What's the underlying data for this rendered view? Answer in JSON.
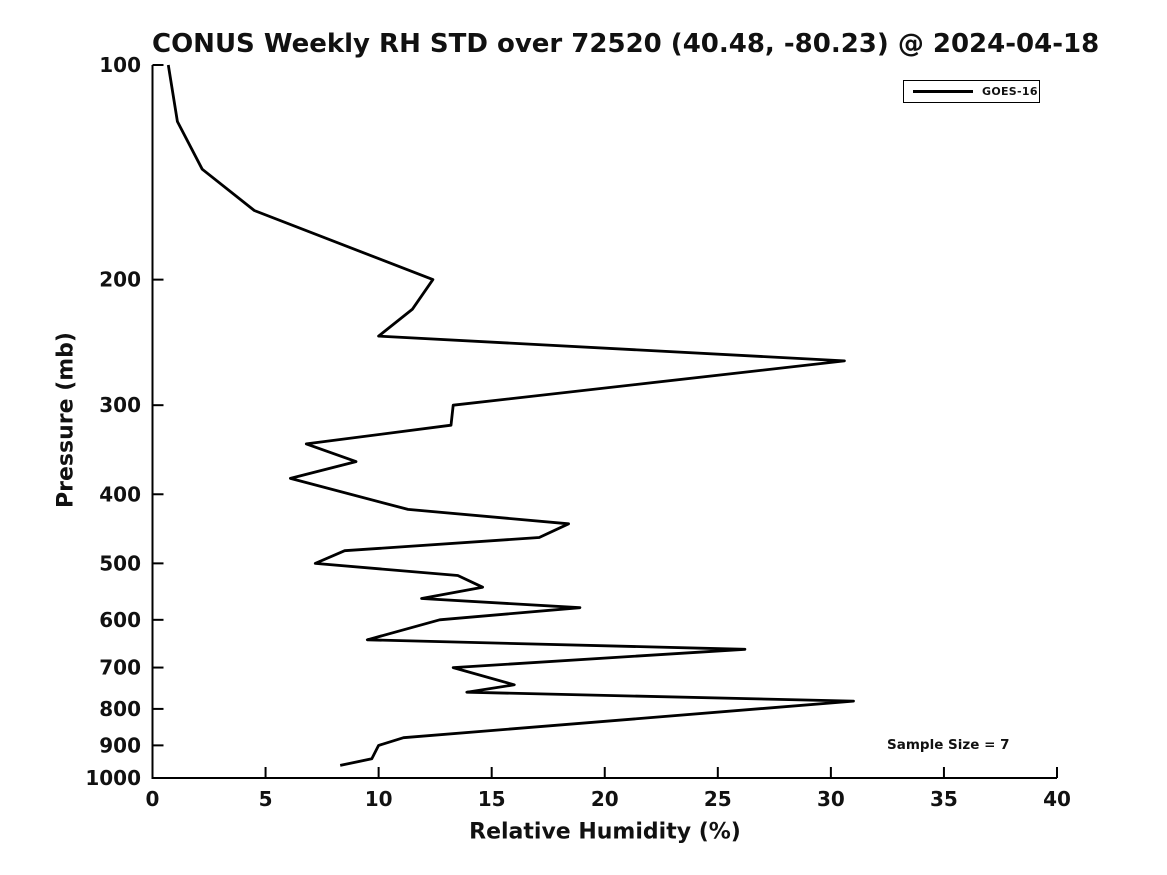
{
  "title": "CONUS Weekly RH STD over 72520 (40.48, -80.23) @ 2024-04-18",
  "legend": {
    "label": "GOES-16",
    "line_color": "#000000"
  },
  "annotation": {
    "text": "Sample Size = 7"
  },
  "chart_data": {
    "type": "line",
    "title": "CONUS Weekly RH STD over 72520 (40.48, -80.23) @ 2024-04-18",
    "xlabel": "Relative Humidity (%)",
    "ylabel": "Pressure (mb)",
    "xlim": [
      0,
      40
    ],
    "x_ticks": [
      0,
      5,
      10,
      15,
      20,
      25,
      30,
      35,
      40
    ],
    "ylim": [
      100,
      1000
    ],
    "y_ticks": [
      100,
      200,
      300,
      400,
      500,
      600,
      700,
      800,
      900,
      1000
    ],
    "y_scale": "log",
    "y_inverted": true,
    "grid": false,
    "legend_position": "upper right",
    "annotations": [
      {
        "text": "Sample Size = 7",
        "x": 33,
        "y": 915
      }
    ],
    "series": [
      {
        "name": "GOES-16",
        "color": "#000000",
        "x_is": "relative_humidity_std_percent",
        "y_is": "pressure_mb",
        "points": [
          [
            0.7,
            100
          ],
          [
            1.1,
            120
          ],
          [
            2.2,
            140
          ],
          [
            4.5,
            160
          ],
          [
            12.4,
            200
          ],
          [
            11.5,
            220
          ],
          [
            10.0,
            240
          ],
          [
            30.6,
            260
          ],
          [
            13.3,
            300
          ],
          [
            13.2,
            320
          ],
          [
            6.8,
            340
          ],
          [
            9.0,
            360
          ],
          [
            6.1,
            380
          ],
          [
            11.3,
            420
          ],
          [
            18.4,
            440
          ],
          [
            17.1,
            460
          ],
          [
            8.5,
            480
          ],
          [
            7.2,
            500
          ],
          [
            13.5,
            520
          ],
          [
            14.6,
            540
          ],
          [
            11.9,
            560
          ],
          [
            18.9,
            577
          ],
          [
            12.7,
            600
          ],
          [
            9.5,
            640
          ],
          [
            26.2,
            660
          ],
          [
            13.3,
            700
          ],
          [
            16.0,
            740
          ],
          [
            13.9,
            758
          ],
          [
            31.0,
            780
          ],
          [
            11.1,
            878
          ],
          [
            10.0,
            900
          ],
          [
            9.7,
            940
          ],
          [
            8.3,
            960
          ]
        ]
      }
    ]
  }
}
